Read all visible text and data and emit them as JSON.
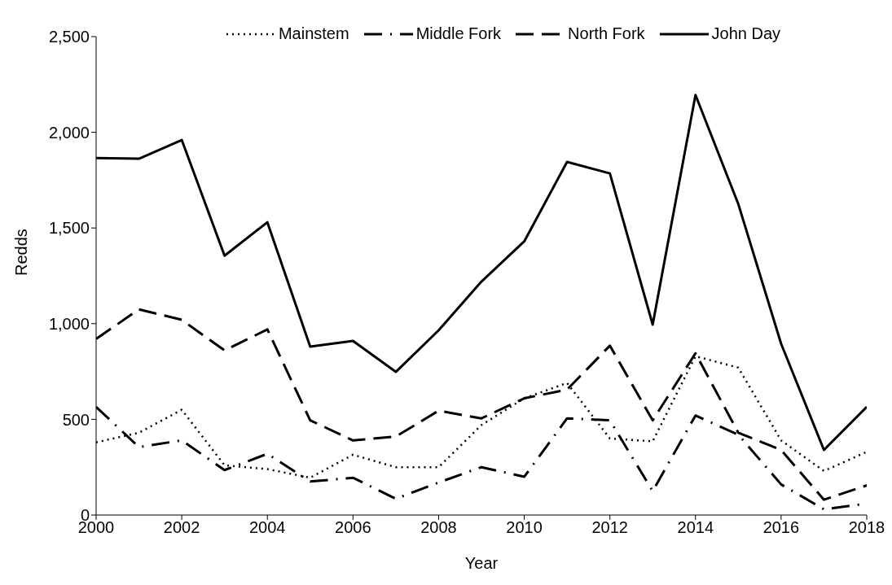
{
  "chart_data": {
    "type": "line",
    "xlabel": "Year",
    "ylabel": "Redds",
    "x": [
      2000,
      2001,
      2002,
      2003,
      2004,
      2005,
      2006,
      2007,
      2008,
      2009,
      2010,
      2011,
      2012,
      2013,
      2014,
      2015,
      2016,
      2017,
      2018
    ],
    "series": [
      {
        "name": "Mainstem",
        "color": "#000000",
        "line_style": "dotted",
        "values": [
          380,
          430,
          550,
          260,
          240,
          195,
          315,
          250,
          250,
          470,
          610,
          690,
          400,
          385,
          830,
          770,
          390,
          230,
          330
        ]
      },
      {
        "name": "Middle Fork",
        "color": "#000000",
        "line_style": "dashdot",
        "values": [
          565,
          355,
          390,
          235,
          320,
          175,
          195,
          85,
          170,
          250,
          200,
          505,
          495,
          125,
          520,
          420,
          160,
          30,
          60
        ]
      },
      {
        "name": "North Fork",
        "color": "#000000",
        "line_style": "dashed",
        "values": [
          920,
          1075,
          1020,
          860,
          970,
          495,
          390,
          410,
          545,
          505,
          610,
          655,
          885,
          495,
          845,
          430,
          340,
          80,
          155
        ]
      },
      {
        "name": "John Day",
        "color": "#000000",
        "line_style": "solid",
        "values": [
          1865,
          1862,
          1960,
          1355,
          1530,
          880,
          910,
          748,
          965,
          1220,
          1430,
          1845,
          1785,
          995,
          2195,
          1625,
          895,
          340,
          565
        ]
      }
    ],
    "xlim": [
      2000,
      2018
    ],
    "xticks": [
      2000,
      2002,
      2004,
      2006,
      2008,
      2010,
      2012,
      2014,
      2016,
      2018
    ],
    "ylim": [
      0,
      2500
    ],
    "yticks": [
      0,
      {
        "value": 500,
        "label": "500"
      },
      {
        "value": 1000,
        "label": "1,000"
      },
      {
        "value": 1500,
        "label": "1,500"
      },
      {
        "value": 2000,
        "label": "2,000"
      },
      {
        "value": 2500,
        "label": "2,500"
      }
    ],
    "legend": "top",
    "grid": false
  }
}
